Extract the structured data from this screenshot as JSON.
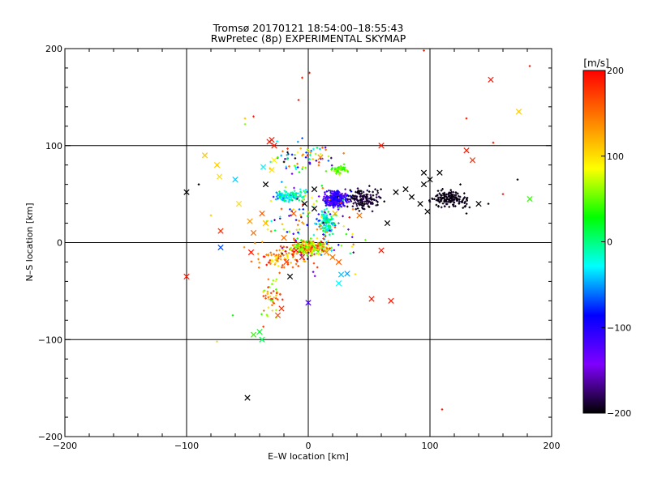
{
  "chart_data": {
    "type": "scatter",
    "title": "Tromsø 20170121 18:54:00–18:55:43",
    "subtitle": "RwPretec (8p) EXPERIMENTAL SKYMAP",
    "xlabel": "E–W location [km]",
    "ylabel": "N–S location [km]",
    "xlim": [
      -200,
      200
    ],
    "ylim": [
      -200,
      200
    ],
    "xticks": [
      -200,
      -100,
      0,
      100,
      200
    ],
    "yticks": [
      -200,
      -100,
      0,
      100,
      200
    ],
    "xtick_labels": [
      "−200",
      "−100",
      "0",
      "100",
      "200"
    ],
    "ytick_labels": [
      "−200",
      "−100",
      "0",
      "100",
      "200"
    ],
    "grid": true,
    "colorbar": {
      "label": "[m/s]",
      "min": -200,
      "max": 200,
      "ticks": [
        -200,
        -100,
        0,
        100,
        200
      ],
      "tick_labels": [
        "−200",
        "−100",
        "0",
        "100",
        "200"
      ],
      "colormap": [
        "#000000",
        "#7f00ff",
        "#0000ff",
        "#00ffff",
        "#00ff00",
        "#ffff00",
        "#ff7f00",
        "#ff0000"
      ]
    },
    "series": [
      {
        "marker": "x",
        "points": [
          [
            -100,
            52,
            -200
          ],
          [
            -100,
            -35,
            190
          ],
          [
            -85,
            90,
            110
          ],
          [
            -75,
            80,
            110
          ],
          [
            -73,
            68,
            100
          ],
          [
            -72,
            12,
            180
          ],
          [
            -72,
            -5,
            -70
          ],
          [
            -60,
            65,
            -40
          ],
          [
            -57,
            40,
            100
          ],
          [
            -50,
            -160,
            -200
          ],
          [
            -48,
            22,
            130
          ],
          [
            -45,
            10,
            150
          ],
          [
            -47,
            -10,
            190
          ],
          [
            -45,
            -95,
            40
          ],
          [
            -40,
            -92,
            20
          ],
          [
            -38,
            -100,
            10
          ],
          [
            -38,
            30,
            160
          ],
          [
            -35,
            20,
            120
          ],
          [
            -37,
            78,
            -30
          ],
          [
            -35,
            60,
            -200
          ],
          [
            -32,
            104,
            190
          ],
          [
            -30,
            106,
            190
          ],
          [
            -28,
            100,
            190
          ],
          [
            -30,
            75,
            100
          ],
          [
            -28,
            85,
            90
          ],
          [
            -25,
            -75,
            170
          ],
          [
            -22,
            -68,
            180
          ],
          [
            -20,
            5,
            150
          ],
          [
            -18,
            -20,
            170
          ],
          [
            -15,
            -35,
            -200
          ],
          [
            -12,
            30,
            160
          ],
          [
            -10,
            -8,
            190
          ],
          [
            -5,
            -15,
            190
          ],
          [
            0,
            -62,
            -120
          ],
          [
            -3,
            40,
            -200
          ],
          [
            5,
            55,
            -200
          ],
          [
            5,
            35,
            -200
          ],
          [
            10,
            88,
            140
          ],
          [
            15,
            -10,
            140
          ],
          [
            20,
            -15,
            150
          ],
          [
            22,
            30,
            120
          ],
          [
            25,
            -20,
            160
          ],
          [
            27,
            -33,
            -40
          ],
          [
            25,
            -42,
            -30
          ],
          [
            32,
            -32,
            -50
          ],
          [
            42,
            28,
            150
          ],
          [
            52,
            -58,
            190
          ],
          [
            60,
            100,
            190
          ],
          [
            60,
            -8,
            190
          ],
          [
            65,
            20,
            -200
          ],
          [
            68,
            -60,
            190
          ],
          [
            72,
            52,
            -200
          ],
          [
            80,
            55,
            -200
          ],
          [
            85,
            47,
            -200
          ],
          [
            92,
            40,
            -200
          ],
          [
            95,
            60,
            -200
          ],
          [
            95,
            72,
            -200
          ],
          [
            98,
            32,
            -200
          ],
          [
            100,
            65,
            -200
          ],
          [
            108,
            72,
            -200
          ],
          [
            130,
            95,
            190
          ],
          [
            135,
            85,
            180
          ],
          [
            140,
            40,
            -200
          ],
          [
            150,
            168,
            190
          ],
          [
            173,
            135,
            110
          ],
          [
            182,
            45,
            40
          ]
        ]
      },
      {
        "marker": "dot",
        "clusters": [
          {
            "cx": 22,
            "cy": 45,
            "sx": 10,
            "sy": 8,
            "n": 260,
            "vmin": -140,
            "vmax": -80
          },
          {
            "cx": 45,
            "cy": 45,
            "sx": 14,
            "sy": 10,
            "n": 140,
            "vmin": -200,
            "vmax": -180
          },
          {
            "cx": 115,
            "cy": 45,
            "sx": 14,
            "sy": 8,
            "n": 160,
            "vmin": -200,
            "vmax": -190
          },
          {
            "cx": 0,
            "cy": -5,
            "sx": 14,
            "sy": 8,
            "n": 260,
            "vmin": 20,
            "vmax": 190
          },
          {
            "cx": -15,
            "cy": 48,
            "sx": 12,
            "sy": 5,
            "n": 110,
            "vmin": -70,
            "vmax": 20
          },
          {
            "cx": 15,
            "cy": 20,
            "sx": 6,
            "sy": 12,
            "n": 120,
            "vmin": -60,
            "vmax": 30
          },
          {
            "cx": 25,
            "cy": 75,
            "sx": 7,
            "sy": 4,
            "n": 50,
            "vmin": 30,
            "vmax": 70
          },
          {
            "cx": -5,
            "cy": 85,
            "sx": 25,
            "sy": 18,
            "n": 70,
            "vmin": -200,
            "vmax": 200
          },
          {
            "cx": -20,
            "cy": -15,
            "sx": 22,
            "sy": 12,
            "n": 90,
            "vmin": 90,
            "vmax": 200
          },
          {
            "cx": -30,
            "cy": -60,
            "sx": 8,
            "sy": 20,
            "n": 45,
            "vmin": 40,
            "vmax": 200
          },
          {
            "cx": 0,
            "cy": 20,
            "sx": 40,
            "sy": 40,
            "n": 120,
            "vmin": -200,
            "vmax": 200
          }
        ],
        "points": [
          [
            1,
            175,
            190
          ],
          [
            -8,
            147,
            190
          ],
          [
            95,
            198,
            190
          ],
          [
            130,
            128,
            190
          ],
          [
            182,
            182,
            190
          ],
          [
            -52,
            128,
            110
          ],
          [
            -52,
            122,
            60
          ],
          [
            110,
            -172,
            190
          ],
          [
            152,
            103,
            190
          ],
          [
            172,
            65,
            -200
          ],
          [
            148,
            40,
            -200
          ],
          [
            -75,
            -102,
            100
          ],
          [
            -62,
            -75,
            30
          ],
          [
            -45,
            130,
            190
          ],
          [
            -5,
            170,
            190
          ],
          [
            130,
            30,
            -200
          ],
          [
            125,
            60,
            -200
          ],
          [
            160,
            50,
            190
          ],
          [
            -80,
            28,
            110
          ],
          [
            -90,
            60,
            -200
          ]
        ]
      }
    ]
  }
}
